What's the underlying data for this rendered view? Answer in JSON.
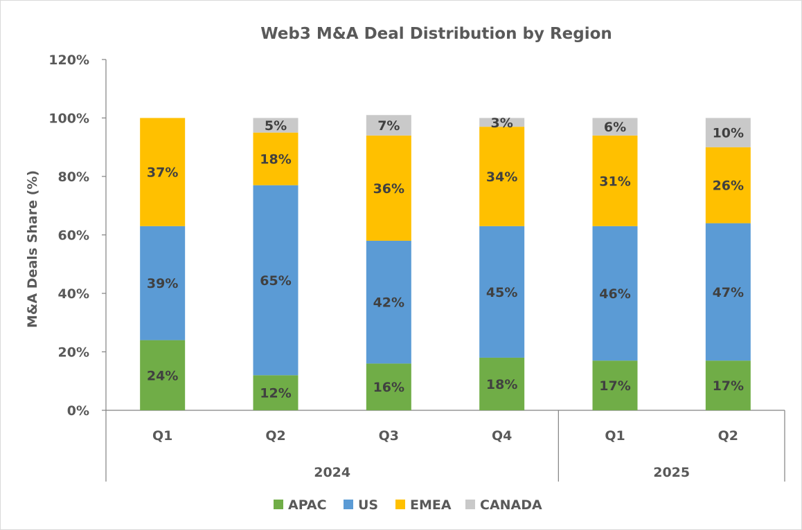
{
  "chart_data": {
    "type": "bar",
    "stacked": true,
    "title": "Web3 M&A Deal Distribution by Region",
    "ylabel": "M&A Deals Share (%)",
    "xlabel": "",
    "ylim": [
      0,
      120
    ],
    "yticks": [
      "0%",
      "20%",
      "40%",
      "60%",
      "80%",
      "100%",
      "120%"
    ],
    "yticks_values": [
      0,
      20,
      40,
      60,
      80,
      100,
      120
    ],
    "categories": [
      "Q1",
      "Q2",
      "Q3",
      "Q4",
      "Q1",
      "Q2"
    ],
    "groups": [
      {
        "label": "2024",
        "count": 4
      },
      {
        "label": "2025",
        "count": 2
      }
    ],
    "series": [
      {
        "name": "APAC",
        "color": "#70ad47",
        "values": [
          24,
          12,
          16,
          18,
          17,
          17
        ],
        "labels": [
          "24%",
          "12%",
          "16%",
          "18%",
          "17%",
          "17%"
        ]
      },
      {
        "name": "US",
        "color": "#5b9bd5",
        "values": [
          39,
          65,
          42,
          45,
          46,
          47
        ],
        "labels": [
          "39%",
          "65%",
          "42%",
          "45%",
          "46%",
          "47%"
        ]
      },
      {
        "name": "EMEA",
        "color": "#ffc000",
        "values": [
          37,
          18,
          36,
          34,
          31,
          26
        ],
        "labels": [
          "37%",
          "18%",
          "36%",
          "34%",
          "31%",
          "26%"
        ]
      },
      {
        "name": "CANADA",
        "color": "#c9c9c9",
        "values": [
          0,
          5,
          7,
          3,
          6,
          10
        ],
        "labels": [
          "",
          "5%",
          "7%",
          "3%",
          "6%",
          "10%"
        ]
      }
    ],
    "legend_position": "bottom"
  }
}
